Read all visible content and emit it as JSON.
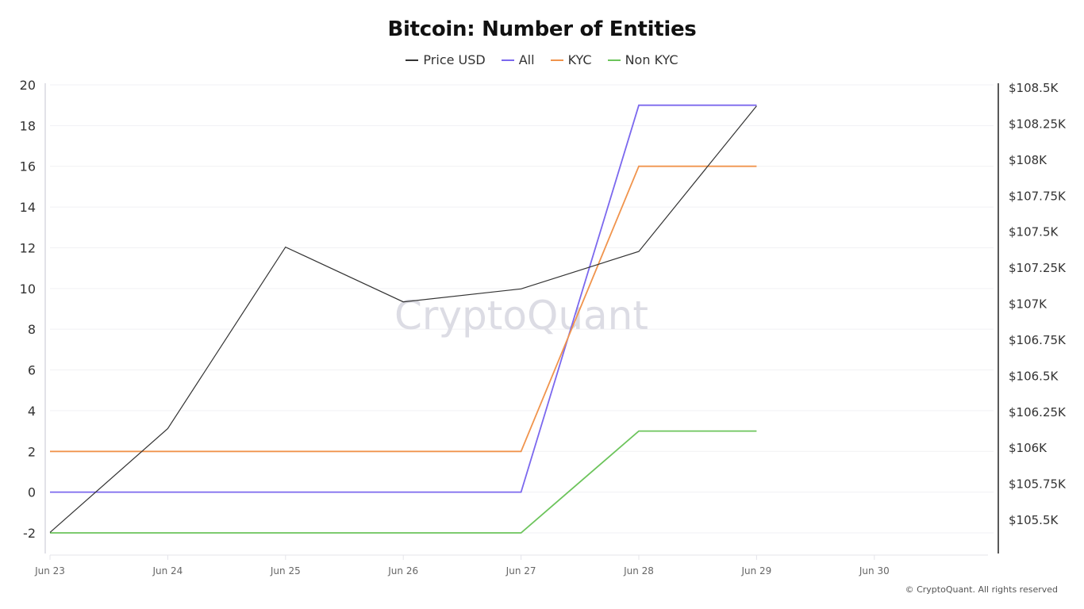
{
  "chart_data": {
    "type": "line",
    "title": "Bitcoin: Number of Entities",
    "xlabel": "",
    "ylabel_left": "",
    "ylabel_right": "",
    "categories": [
      "Jun 23",
      "Jun 24",
      "Jun 25",
      "Jun 26",
      "Jun 27",
      "Jun 28",
      "Jun 29",
      "Jun 30"
    ],
    "series": [
      {
        "name": "Price USD",
        "axis": "right",
        "color": "#333333",
        "values": [
          105410,
          106130,
          107390,
          107010,
          107100,
          107360,
          108370,
          null
        ]
      },
      {
        "name": "All",
        "axis": "left",
        "color": "#7b68ee",
        "values": [
          0,
          0,
          0,
          0,
          0,
          19,
          19,
          null
        ]
      },
      {
        "name": "KYC",
        "axis": "left",
        "color": "#f0944d",
        "values": [
          2,
          2,
          2,
          2,
          2,
          16,
          16,
          null
        ]
      },
      {
        "name": "Non KYC",
        "axis": "left",
        "color": "#6cc45b",
        "values": [
          -2,
          -2,
          -2,
          -2,
          -2,
          3,
          3,
          null
        ]
      }
    ],
    "left_axis": {
      "ylim": [
        -2,
        20
      ],
      "ticks": [
        "20",
        "18",
        "16",
        "14",
        "12",
        "10",
        "8",
        "6",
        "4",
        "2",
        "0",
        "-2"
      ],
      "tick_values": [
        20,
        18,
        16,
        14,
        12,
        10,
        8,
        6,
        4,
        2,
        0,
        -2
      ]
    },
    "right_axis": {
      "ylim": [
        105500,
        108500
      ],
      "ticks": [
        "$108.5K",
        "$108.25K",
        "$108K",
        "$107.75K",
        "$107.5K",
        "$107.25K",
        "$107K",
        "$106.75K",
        "$106.5K",
        "$106.25K",
        "$106K",
        "$105.75K",
        "$105.5K"
      ],
      "tick_values": [
        108500,
        108250,
        108000,
        107750,
        107500,
        107250,
        107000,
        106750,
        106500,
        106250,
        106000,
        105750,
        105500
      ]
    },
    "grid": true,
    "legend_position": "top"
  },
  "watermark": "CryptoQuant",
  "copyright": "© CryptoQuant. All rights reserved"
}
